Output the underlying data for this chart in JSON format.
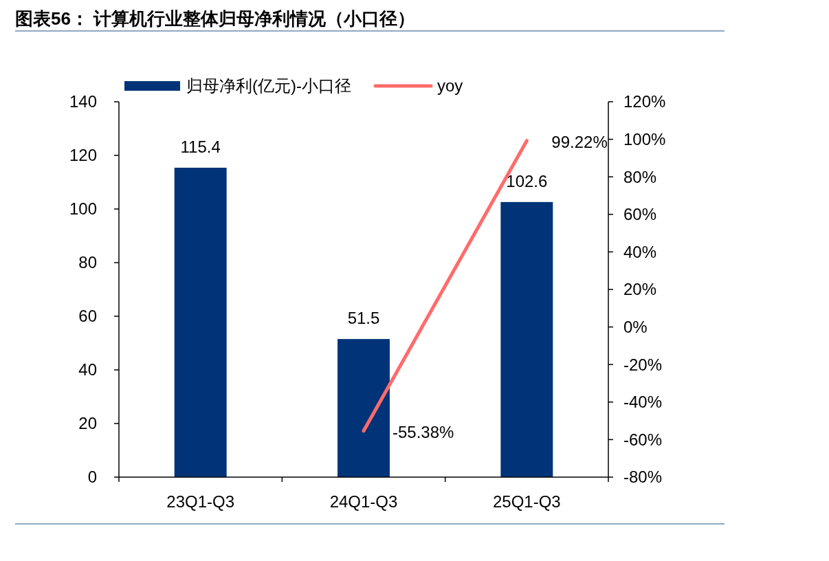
{
  "chart_data": {
    "type": "bar",
    "title": "图表56：  计算机行业整体归母净利情况（小口径）",
    "categories": [
      "23Q1-Q3",
      "24Q1-Q3",
      "25Q1-Q3"
    ],
    "series": [
      {
        "name": "归母净利(亿元)-小口径",
        "color": "#003378",
        "values": [
          115.4,
          51.5,
          102.6
        ],
        "value_labels": [
          "115.4",
          "51.5",
          "102.6"
        ]
      },
      {
        "name": "yoy",
        "type": "line",
        "axis": "y2",
        "color": "#ff6b6b",
        "values": [
          null,
          -55.38,
          99.22
        ],
        "value_labels": [
          null,
          "-55.38%",
          "99.22%"
        ]
      }
    ],
    "ylim": [
      0,
      140
    ],
    "yticks": [
      0,
      20,
      40,
      60,
      80,
      100,
      120,
      140
    ],
    "y2lim": [
      -80,
      120
    ],
    "y2ticks": [
      {
        "value": -80,
        "label": "-80%"
      },
      {
        "value": -60,
        "label": "-60%"
      },
      {
        "value": -40,
        "label": "-40%"
      },
      {
        "value": -20,
        "label": "-20%"
      },
      {
        "value": 0,
        "label": "0%"
      },
      {
        "value": 20,
        "label": "20%"
      },
      {
        "value": 40,
        "label": "40%"
      },
      {
        "value": 60,
        "label": "60%"
      },
      {
        "value": 80,
        "label": "80%"
      },
      {
        "value": 100,
        "label": "100%"
      },
      {
        "value": 120,
        "label": "120%"
      }
    ],
    "legend": "top",
    "grid": false,
    "marker": "none"
  }
}
